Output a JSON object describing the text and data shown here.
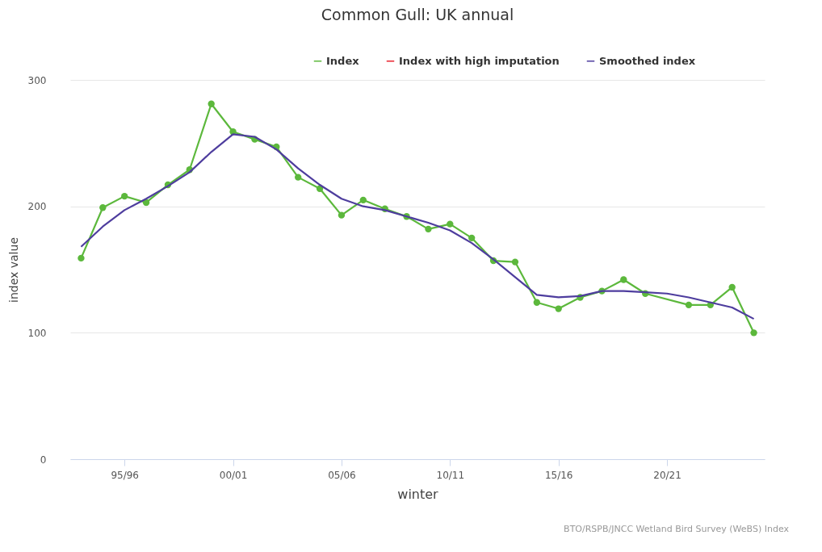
{
  "chart_data": {
    "type": "line",
    "title": "Common Gull: UK annual",
    "xlabel": "winter",
    "ylabel": "index value",
    "annotations": [
      "BTO/RSPB/JNCC Wetland Bird Survey (WeBS) Index"
    ],
    "categories": [
      null,
      null,
      "95/96",
      null,
      null,
      null,
      null,
      "00/01",
      null,
      null,
      null,
      null,
      "05/06",
      null,
      null,
      null,
      null,
      "10/11",
      null,
      null,
      null,
      null,
      "15/16",
      null,
      null,
      null,
      null,
      "20/21",
      null,
      null,
      null,
      null
    ],
    "series": [
      {
        "name": "Index",
        "color": "#5cb83c",
        "marker": "circle",
        "values": [
          159,
          199,
          208,
          203,
          217,
          229,
          281,
          259,
          253,
          247,
          223,
          214,
          193,
          205,
          198,
          192,
          182,
          186,
          175,
          157,
          156,
          124,
          119,
          128,
          133,
          142,
          131,
          null,
          122,
          122,
          136,
          100
        ]
      },
      {
        "name": "Index with high imputation",
        "color": "#e8232f",
        "marker": "circle",
        "values": [
          null,
          null,
          null,
          null,
          null,
          null,
          null,
          null,
          null,
          null,
          null,
          null,
          null,
          null,
          null,
          null,
          null,
          null,
          null,
          null,
          null,
          null,
          null,
          null,
          null,
          null,
          null,
          null,
          null,
          null,
          null,
          null
        ]
      },
      {
        "name": "Smoothed index",
        "color": "#4e3d9e",
        "marker": "none",
        "values": [
          168,
          184,
          197,
          206,
          216,
          227,
          243,
          257,
          255,
          245,
          230,
          217,
          206,
          200,
          197,
          192,
          187,
          181,
          171,
          158,
          144,
          130,
          128,
          129,
          133,
          133,
          132,
          131,
          128,
          124,
          120,
          111
        ]
      }
    ],
    "ylim": [
      0,
      300
    ],
    "yticks": [
      0,
      100,
      200,
      300
    ],
    "grid": "y",
    "legend": "top right"
  }
}
